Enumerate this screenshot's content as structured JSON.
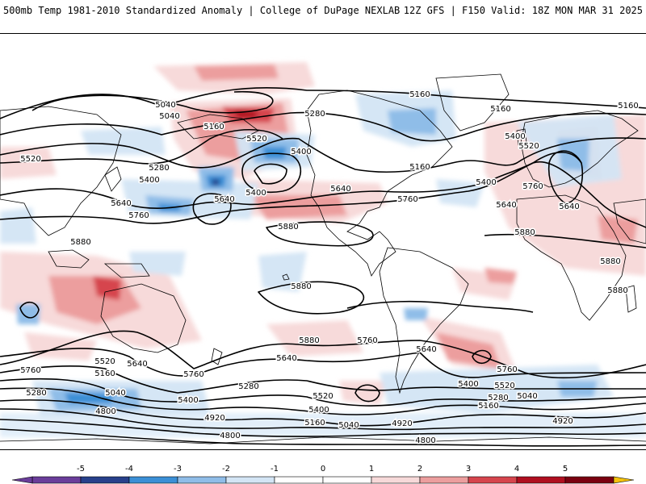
{
  "header": {
    "title": "500mb Temp 1981-2010 Standardized Anomaly | College of DuPage NEXLAB",
    "run_info": "12Z GFS | F150 Valid: 18Z MON MAR 31 2025"
  },
  "colors": {
    "neg5": "#6a3d9a",
    "neg4": "#27408b",
    "neg3": "#3b8fd6",
    "neg2": "#8fbde8",
    "neg1": "#d3e5f5",
    "zero": "#ffffff",
    "pos1": "#f7d9d9",
    "pos2": "#ec9e9e",
    "pos3": "#d6454d",
    "pos4": "#b00f1f",
    "pos5": "#7a0010",
    "over": "#f4c20d",
    "contour": "#000000",
    "coast": "#000000"
  },
  "colorbar": {
    "ticks": [
      "-5",
      "-4",
      "-3",
      "-2",
      "-1",
      "0",
      "1",
      "2",
      "3",
      "4",
      "5"
    ]
  },
  "height_labels": [
    {
      "text": "5160"
    },
    {
      "text": "5040"
    },
    {
      "text": "5040"
    },
    {
      "text": "5280"
    },
    {
      "text": "5160"
    },
    {
      "text": "5160"
    },
    {
      "text": "5520"
    },
    {
      "text": "5400"
    },
    {
      "text": "5160"
    },
    {
      "text": "5520"
    },
    {
      "text": "5280"
    },
    {
      "text": "5400"
    },
    {
      "text": "5520"
    },
    {
      "text": "5400"
    },
    {
      "text": "5640"
    },
    {
      "text": "5640"
    },
    {
      "text": "5760"
    },
    {
      "text": "5640"
    },
    {
      "text": "5400"
    },
    {
      "text": "5160"
    },
    {
      "text": "5400"
    },
    {
      "text": "5760"
    },
    {
      "text": "5640"
    },
    {
      "text": "5880"
    },
    {
      "text": "5760"
    },
    {
      "text": "5880"
    },
    {
      "text": "5640"
    },
    {
      "text": "5880"
    },
    {
      "text": "5880"
    },
    {
      "text": "5880"
    },
    {
      "text": "5880"
    },
    {
      "text": "5880"
    },
    {
      "text": "5760"
    },
    {
      "text": "5640"
    },
    {
      "text": "5760"
    },
    {
      "text": "5520"
    },
    {
      "text": "5640"
    },
    {
      "text": "5760"
    },
    {
      "text": "5160"
    },
    {
      "text": "5640"
    },
    {
      "text": "5280"
    },
    {
      "text": "5040"
    },
    {
      "text": "5280"
    },
    {
      "text": "5400"
    },
    {
      "text": "5520"
    },
    {
      "text": "5400"
    },
    {
      "text": "5760"
    },
    {
      "text": "5400"
    },
    {
      "text": "5520"
    },
    {
      "text": "5280"
    },
    {
      "text": "5160"
    },
    {
      "text": "5040"
    },
    {
      "text": "4800"
    },
    {
      "text": "4920"
    },
    {
      "text": "5160"
    },
    {
      "text": "5040"
    },
    {
      "text": "4920"
    },
    {
      "text": "4920"
    },
    {
      "text": "4800"
    },
    {
      "text": "4800"
    }
  ]
}
